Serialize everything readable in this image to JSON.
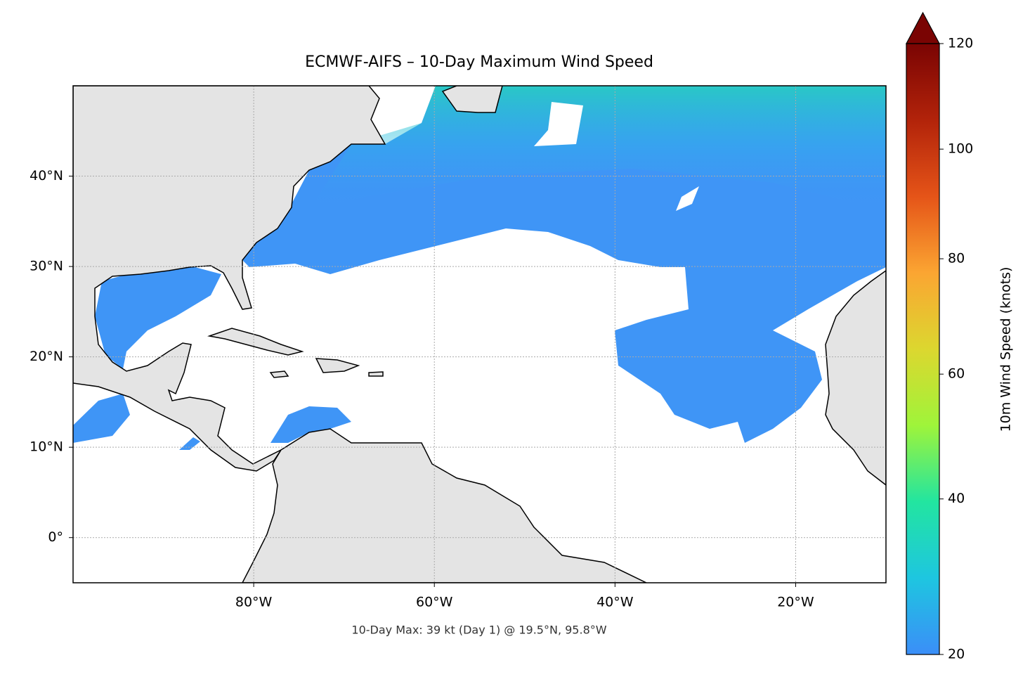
{
  "title": "ECMWF-AIFS – 10-Day Maximum Wind Speed",
  "footnote": "10-Day Max: 39 kt (Day 1) @ 19.5°N, 95.8°W",
  "map": {
    "xlim": [
      -100,
      -10
    ],
    "ylim": [
      -5,
      50
    ],
    "xticks": [
      {
        "value": -80,
        "label": "80°W"
      },
      {
        "value": -60,
        "label": "60°W"
      },
      {
        "value": -40,
        "label": "40°W"
      },
      {
        "value": -20,
        "label": "20°W"
      }
    ],
    "yticks": [
      {
        "value": 0,
        "label": "0°"
      },
      {
        "value": 10,
        "label": "10°N"
      },
      {
        "value": 20,
        "label": "20°N"
      },
      {
        "value": 30,
        "label": "30°N"
      },
      {
        "value": 40,
        "label": "40°N"
      }
    ],
    "grid": true
  },
  "colorbar": {
    "label": "10m Wind Speed (knots)",
    "lim": [
      20,
      120
    ],
    "ticks": [
      20,
      40,
      60,
      80,
      100,
      120
    ],
    "norm": "power",
    "gamma": 0.85,
    "extend": "max",
    "colors": [
      "#3b8ef8",
      "#1ec6e0",
      "#22e5a0",
      "#9ff43a",
      "#dcd72f",
      "#fba532",
      "#e55418",
      "#b2230a",
      "#7a0403"
    ]
  }
}
